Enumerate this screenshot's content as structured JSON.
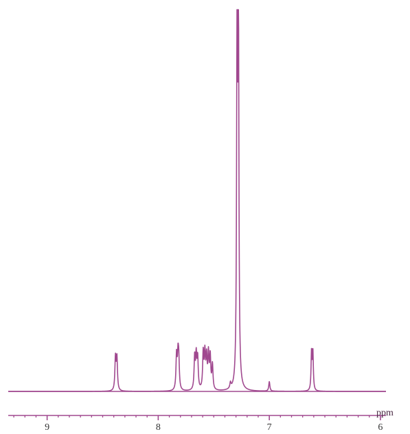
{
  "chart_data": {
    "type": "line",
    "title": "",
    "xlabel": "ppm",
    "ylabel": "",
    "x_reversed": true,
    "xlim": [
      9.35,
      5.95
    ],
    "ylim": [
      0,
      100
    ],
    "x_major_ticks": [
      9,
      8,
      7,
      6
    ],
    "x_tick_labels": [
      "9",
      "8",
      "7",
      "6"
    ],
    "x_minor_tick_step": 0.1,
    "grid": false,
    "legend": "none",
    "series": [
      {
        "color": "#a0488f",
        "peaks": [
          {
            "ppm": 8.385,
            "height": 8.5,
            "width": 0.006
          },
          {
            "ppm": 8.372,
            "height": 8.5,
            "width": 0.006
          },
          {
            "ppm": 7.835,
            "height": 9.0,
            "width": 0.006
          },
          {
            "ppm": 7.822,
            "height": 8.0,
            "width": 0.006
          },
          {
            "ppm": 7.815,
            "height": 7.0,
            "width": 0.006
          },
          {
            "ppm": 7.672,
            "height": 8.5,
            "width": 0.006
          },
          {
            "ppm": 7.658,
            "height": 8.5,
            "width": 0.006
          },
          {
            "ppm": 7.645,
            "height": 8.0,
            "width": 0.006
          },
          {
            "ppm": 7.595,
            "height": 9.5,
            "width": 0.006
          },
          {
            "ppm": 7.58,
            "height": 9.0,
            "width": 0.006
          },
          {
            "ppm": 7.565,
            "height": 8.0,
            "width": 0.006
          },
          {
            "ppm": 7.548,
            "height": 9.0,
            "width": 0.006
          },
          {
            "ppm": 7.532,
            "height": 8.5,
            "width": 0.006
          },
          {
            "ppm": 7.512,
            "height": 6.5,
            "width": 0.006
          },
          {
            "ppm": 7.35,
            "height": 1.5,
            "width": 0.006
          },
          {
            "ppm": 7.29,
            "height": 100,
            "width": 0.005
          },
          {
            "ppm": 7.278,
            "height": 97,
            "width": 0.005
          },
          {
            "ppm": 7.0,
            "height": 2.5,
            "width": 0.006
          },
          {
            "ppm": 6.62,
            "height": 10.0,
            "width": 0.005
          },
          {
            "ppm": 6.608,
            "height": 10.0,
            "width": 0.005
          }
        ]
      }
    ]
  }
}
